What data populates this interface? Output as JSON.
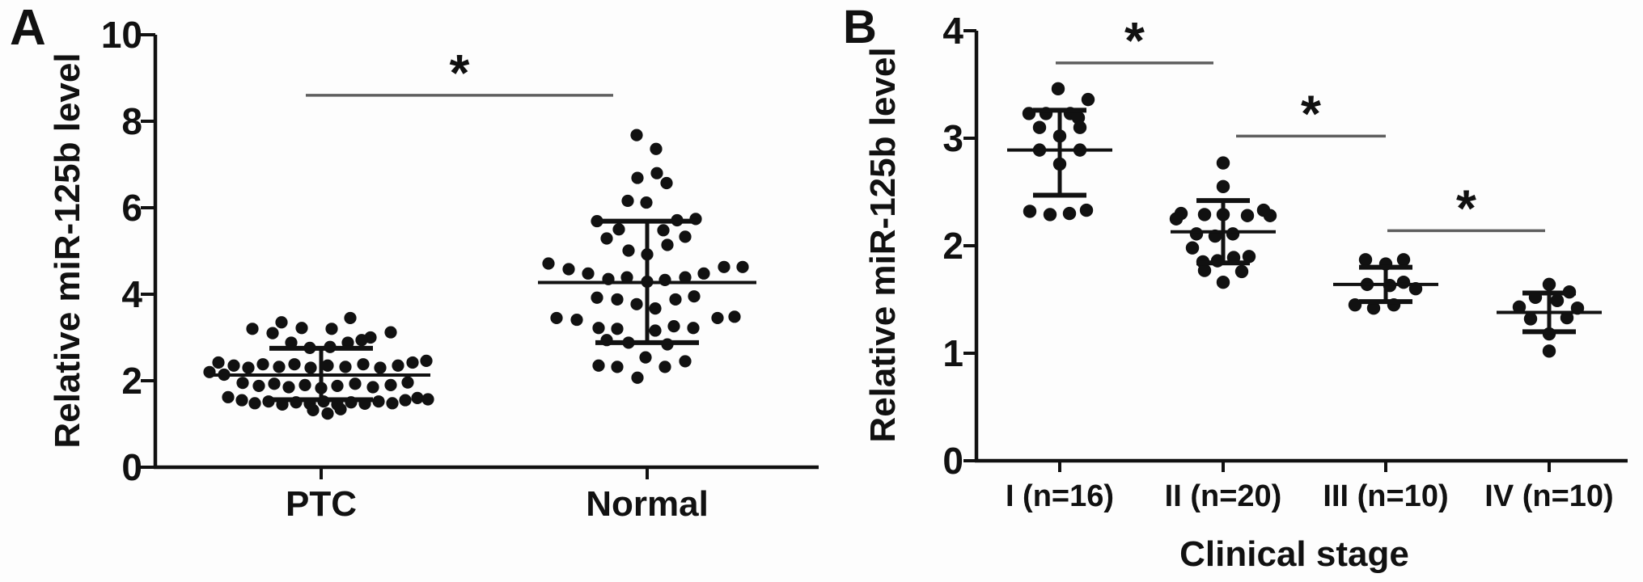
{
  "figure": {
    "ink_color": "#111111",
    "sig_line_color": "#5f5f5f",
    "background": "#fdfdfd",
    "dot_shape": "filled-circle",
    "error_bar_style": "mean-with-sd-caps"
  },
  "chart_data": [
    {
      "type": "scatter",
      "panel_label": "A",
      "title": "",
      "ylabel": "Relative miR-125b level",
      "xlabel": "",
      "ylim": [
        0,
        10
      ],
      "yticks": [
        0,
        2,
        4,
        6,
        8,
        10
      ],
      "grid": false,
      "legend": "none",
      "categories": [
        "PTC",
        "Normal"
      ],
      "groups": [
        {
          "name": "PTC",
          "mean": 2.13,
          "sd_high": 2.75,
          "sd_low": 1.56,
          "points": [
            [
              -85,
              3.2
            ],
            [
              -60,
              3.1
            ],
            [
              -49,
              3.35
            ],
            [
              -24,
              3.22
            ],
            [
              13,
              3.2
            ],
            [
              36,
              3.45
            ],
            [
              61,
              3.0
            ],
            [
              86,
              3.12
            ],
            [
              -37,
              2.88
            ],
            [
              -14,
              2.76
            ],
            [
              11,
              2.78
            ],
            [
              33,
              2.88
            ],
            [
              50,
              2.94
            ],
            [
              -127,
              2.42
            ],
            [
              -108,
              2.35
            ],
            [
              -90,
              2.3
            ],
            [
              -72,
              2.38
            ],
            [
              -52,
              2.32
            ],
            [
              -33,
              2.38
            ],
            [
              -13,
              2.3
            ],
            [
              8,
              2.35
            ],
            [
              30,
              2.32
            ],
            [
              52,
              2.38
            ],
            [
              73,
              2.3
            ],
            [
              95,
              2.35
            ],
            [
              113,
              2.42
            ],
            [
              130,
              2.46
            ],
            [
              -138,
              2.2
            ],
            [
              -120,
              2.14
            ],
            [
              -97,
              1.95
            ],
            [
              -77,
              1.88
            ],
            [
              -58,
              1.93
            ],
            [
              -40,
              1.85
            ],
            [
              -20,
              1.9
            ],
            [
              0,
              1.83
            ],
            [
              20,
              1.88
            ],
            [
              42,
              1.93
            ],
            [
              64,
              1.85
            ],
            [
              86,
              1.9
            ],
            [
              107,
              1.96
            ],
            [
              -115,
              1.62
            ],
            [
              -98,
              1.55
            ],
            [
              -82,
              1.48
            ],
            [
              -65,
              1.52
            ],
            [
              -48,
              1.45
            ],
            [
              -31,
              1.5
            ],
            [
              -14,
              1.47
            ],
            [
              3,
              1.52
            ],
            [
              20,
              1.45
            ],
            [
              37,
              1.5
            ],
            [
              54,
              1.47
            ],
            [
              71,
              1.52
            ],
            [
              88,
              1.48
            ],
            [
              104,
              1.55
            ],
            [
              119,
              1.6
            ],
            [
              132,
              1.57
            ],
            [
              -10,
              1.32
            ],
            [
              8,
              1.24
            ],
            [
              24,
              1.34
            ]
          ]
        },
        {
          "name": "Normal",
          "mean": 4.27,
          "sd_high": 5.69,
          "sd_low": 2.88,
          "points": [
            [
              -13,
              7.68
            ],
            [
              11,
              7.36
            ],
            [
              -12,
              6.69
            ],
            [
              12,
              6.8
            ],
            [
              24,
              6.57
            ],
            [
              -24,
              6.16
            ],
            [
              -1,
              6.12
            ],
            [
              -62,
              5.69
            ],
            [
              37,
              5.71
            ],
            [
              60,
              5.74
            ],
            [
              -35,
              5.5
            ],
            [
              20,
              5.48
            ],
            [
              -50,
              5.29
            ],
            [
              47,
              5.33
            ],
            [
              -23,
              5.01
            ],
            [
              25,
              5.14
            ],
            [
              0,
              4.92
            ],
            [
              -122,
              4.71
            ],
            [
              -97,
              4.58
            ],
            [
              -73,
              4.48
            ],
            [
              -48,
              4.35
            ],
            [
              -25,
              4.39
            ],
            [
              0,
              4.29
            ],
            [
              22,
              4.33
            ],
            [
              47,
              4.39
            ],
            [
              70,
              4.48
            ],
            [
              95,
              4.63
            ],
            [
              118,
              4.63
            ],
            [
              -62,
              3.92
            ],
            [
              -37,
              3.88
            ],
            [
              -13,
              3.77
            ],
            [
              10,
              3.67
            ],
            [
              35,
              3.88
            ],
            [
              58,
              3.95
            ],
            [
              -112,
              3.45
            ],
            [
              -87,
              3.41
            ],
            [
              87,
              3.45
            ],
            [
              108,
              3.48
            ],
            [
              -60,
              3.22
            ],
            [
              -37,
              3.2
            ],
            [
              10,
              3.16
            ],
            [
              33,
              3.26
            ],
            [
              57,
              3.22
            ],
            [
              -50,
              2.94
            ],
            [
              -23,
              2.88
            ],
            [
              25,
              2.84
            ],
            [
              -2,
              2.54
            ],
            [
              22,
              2.32
            ],
            [
              -60,
              2.35
            ],
            [
              -37,
              2.32
            ],
            [
              47,
              2.45
            ],
            [
              -12,
              2.07
            ]
          ]
        }
      ],
      "significance": [
        {
          "from": "PTC",
          "to": "Normal",
          "label": "*",
          "y": 8.6
        }
      ]
    },
    {
      "type": "scatter",
      "panel_label": "B",
      "title": "",
      "ylabel": "Relative miR-125b level",
      "xlabel": "Clinical stage",
      "ylim": [
        0,
        4
      ],
      "yticks": [
        0,
        1,
        2,
        3,
        4
      ],
      "grid": false,
      "legend": "none",
      "categories": [
        "I (n=16)",
        "II (n=20)",
        "III (n=10)",
        "IV (n=10)"
      ],
      "groups": [
        {
          "name": "I (n=16)",
          "mean": 2.89,
          "sd_high": 3.26,
          "sd_low": 2.47,
          "points": [
            [
              -2,
              3.46
            ],
            [
              35,
              3.36
            ],
            [
              -38,
              3.23
            ],
            [
              -17,
              3.23
            ],
            [
              13,
              3.23
            ],
            [
              23,
              3.19
            ],
            [
              -25,
              3.1
            ],
            [
              25,
              3.1
            ],
            [
              0,
              3.02
            ],
            [
              -25,
              2.89
            ],
            [
              25,
              2.89
            ],
            [
              0,
              2.76
            ],
            [
              -37,
              2.32
            ],
            [
              -12,
              2.29
            ],
            [
              12,
              2.3
            ],
            [
              33,
              2.33
            ]
          ]
        },
        {
          "name": "II (n=20)",
          "mean": 2.13,
          "sd_high": 2.42,
          "sd_low": 1.84,
          "points": [
            [
              0,
              2.77
            ],
            [
              0,
              2.55
            ],
            [
              -52,
              2.3
            ],
            [
              -23,
              2.29
            ],
            [
              0,
              2.29
            ],
            [
              30,
              2.28
            ],
            [
              50,
              2.33
            ],
            [
              58,
              2.28
            ],
            [
              -58,
              2.25
            ],
            [
              -33,
              2.11
            ],
            [
              -10,
              2.09
            ],
            [
              12,
              2.11
            ],
            [
              -38,
              1.98
            ],
            [
              -25,
              1.85
            ],
            [
              -7,
              1.86
            ],
            [
              13,
              1.89
            ],
            [
              32,
              1.9
            ],
            [
              -23,
              1.77
            ],
            [
              23,
              1.76
            ],
            [
              0,
              1.66
            ]
          ]
        },
        {
          "name": "III (n=10)",
          "mean": 1.64,
          "sd_high": 1.8,
          "sd_low": 1.48,
          "points": [
            [
              -25,
              1.87
            ],
            [
              0,
              1.83
            ],
            [
              22,
              1.87
            ],
            [
              -23,
              1.64
            ],
            [
              5,
              1.63
            ],
            [
              22,
              1.66
            ],
            [
              37,
              1.6
            ],
            [
              -38,
              1.45
            ],
            [
              -15,
              1.42
            ],
            [
              10,
              1.45
            ]
          ]
        },
        {
          "name": "IV (n=10)",
          "mean": 1.38,
          "sd_high": 1.56,
          "sd_low": 1.2,
          "points": [
            [
              0,
              1.64
            ],
            [
              -17,
              1.52
            ],
            [
              10,
              1.49
            ],
            [
              25,
              1.57
            ],
            [
              -37,
              1.43
            ],
            [
              35,
              1.42
            ],
            [
              -23,
              1.32
            ],
            [
              22,
              1.33
            ],
            [
              0,
              1.18
            ],
            [
              0,
              1.02
            ]
          ]
        }
      ],
      "significance": [
        {
          "from": "I (n=16)",
          "to": "II (n=20)",
          "label": "*",
          "y": 3.7
        },
        {
          "from": "II (n=20)",
          "to": "III (n=10)",
          "label": "*",
          "y": 3.02
        },
        {
          "from": "III (n=10)",
          "to": "IV (n=10)",
          "label": "*",
          "y": 2.14
        }
      ]
    }
  ]
}
